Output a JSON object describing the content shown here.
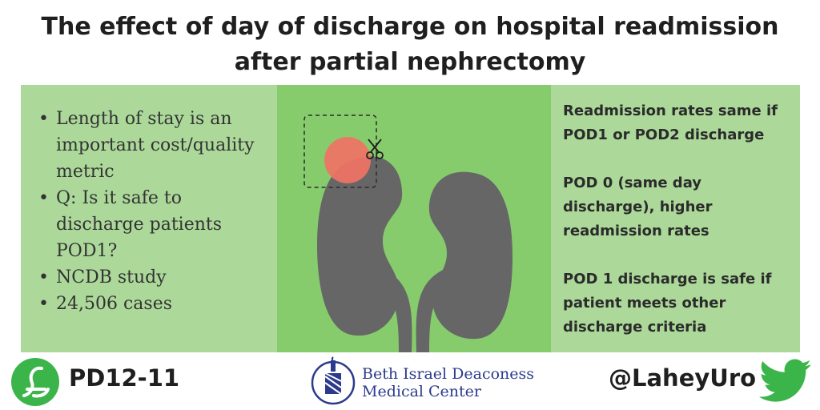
{
  "title": {
    "line1": "The effect of day of discharge on hospital readmission",
    "line2": "after partial nephrectomy"
  },
  "left_panel": {
    "bullets": [
      "Length of stay is an important cost/quality metric",
      "Q: Is it safe to discharge patients POD1?",
      "NCDB study",
      "24,506 cases"
    ]
  },
  "right_panel": {
    "paragraphs": [
      "Readmission rates same if POD1 or POD2 discharge",
      "POD 0 (same day discharge), higher readmission rates",
      "POD 1 discharge is safe if patient meets other discharge criteria"
    ]
  },
  "footer": {
    "code": "PD12-11",
    "institution_line1": "Beth Israel Deaconess",
    "institution_line2": "Medical Center",
    "handle": "@LaheyUro"
  },
  "colors": {
    "panel_light": "#acd99a",
    "panel_mid": "#87cc6c",
    "kidney": "#666666",
    "tumor": "#f07365",
    "lahey_green": "#3bb54a",
    "twitter_green": "#3bb54a",
    "bidmc_blue": "#2b3a8c"
  },
  "icons": [
    "kidney-illustration",
    "scissors-icon",
    "lahey-logo-icon",
    "bidmc-logo-icon",
    "twitter-bird-icon"
  ]
}
